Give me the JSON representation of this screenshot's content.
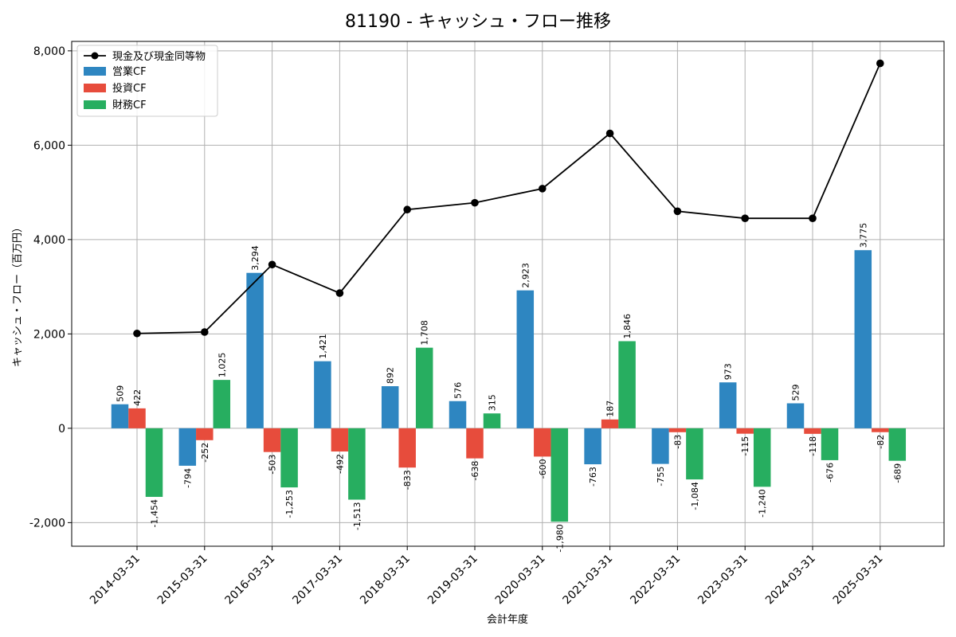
{
  "chart_data": {
    "type": "bar",
    "title": "81190 - キャッシュ・フロー推移",
    "xlabel": "会計年度",
    "ylabel": "キャッシュ・フロー（百万円）",
    "ylim": [
      -2500,
      8200
    ],
    "yticks": [
      -2000,
      0,
      2000,
      4000,
      6000,
      8000
    ],
    "ytick_labels": [
      "-2,000",
      "0",
      "2,000",
      "4,000",
      "6,000",
      "8,000"
    ],
    "grid": true,
    "legend_position": "top-left",
    "categories": [
      "2014-03-31",
      "2015-03-31",
      "2016-03-31",
      "2017-03-31",
      "2018-03-31",
      "2019-03-31",
      "2020-03-31",
      "2021-03-31",
      "2022-03-31",
      "2023-03-31",
      "2024-03-31",
      "2025-03-31"
    ],
    "series": [
      {
        "name": "営業CF",
        "color": "#2e86c1",
        "values": [
          509,
          -794,
          3294,
          1421,
          892,
          576,
          2923,
          -763,
          -755,
          973,
          529,
          3775
        ],
        "labels": [
          "509",
          "-794",
          "3,294",
          "1,421",
          "892",
          "576",
          "2,923",
          "-763",
          "-755",
          "973",
          "529",
          "3,775"
        ]
      },
      {
        "name": "投資CF",
        "color": "#e74c3c",
        "values": [
          422,
          -252,
          -503,
          -492,
          -833,
          -638,
          -600,
          187,
          -83,
          -115,
          -118,
          -82
        ],
        "labels": [
          "422",
          "-252",
          "-503",
          "-492",
          "-833",
          "-638",
          "-600",
          "187",
          "-83",
          "-115",
          "-118",
          "-82"
        ]
      },
      {
        "name": "財務CF",
        "color": "#27ae60",
        "values": [
          -1454,
          1025,
          -1253,
          -1513,
          1708,
          315,
          -1980,
          1846,
          -1084,
          -1240,
          -676,
          -689
        ],
        "labels": [
          "-1,454",
          "1,025",
          "-1,253",
          "-1,513",
          "1,708",
          "315",
          "-1,980",
          "1,846",
          "-1,084",
          "-1,240",
          "-676",
          "-689"
        ]
      }
    ],
    "line_series": {
      "name": "現金及び現金同等物",
      "color": "#000000",
      "values": [
        2010,
        2040,
        3470,
        2865,
        4635,
        4780,
        5080,
        6250,
        4600,
        4450,
        4450,
        7735
      ]
    }
  }
}
